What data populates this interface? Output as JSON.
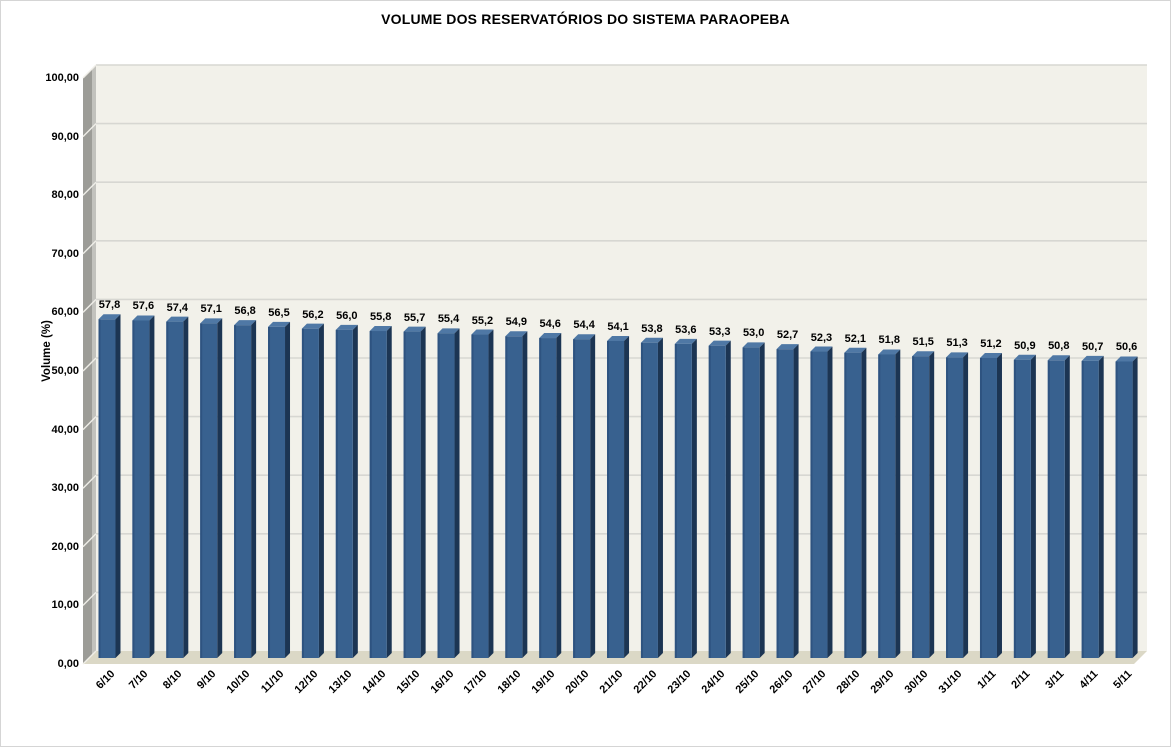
{
  "chart_data": {
    "type": "bar",
    "style": "excel-3d-column",
    "title": "VOLUME DOS RESERVATÓRIOS DO SISTEMA PARAOPEBA",
    "xlabel": "",
    "ylabel": "Volume (%)",
    "ylim": [
      0,
      100
    ],
    "ytick_step": 10,
    "ytick_labels": [
      "100,00",
      "90,00",
      "80,00",
      "70,00",
      "60,00",
      "50,00",
      "40,00",
      "30,00",
      "20,00",
      "10,00",
      "0,00"
    ],
    "grid": true,
    "legend": false,
    "categories": [
      "6/10",
      "7/10",
      "8/10",
      "9/10",
      "10/10",
      "11/10",
      "12/10",
      "13/10",
      "14/10",
      "15/10",
      "16/10",
      "17/10",
      "18/10",
      "19/10",
      "20/10",
      "21/10",
      "22/10",
      "23/10",
      "24/10",
      "25/10",
      "26/10",
      "27/10",
      "28/10",
      "29/10",
      "30/10",
      "31/10",
      "1/11",
      "2/11",
      "3/11",
      "4/11",
      "5/11"
    ],
    "values": [
      57.8,
      57.6,
      57.4,
      57.1,
      56.8,
      56.5,
      56.2,
      56.0,
      55.8,
      55.7,
      55.4,
      55.2,
      54.9,
      54.6,
      54.4,
      54.1,
      53.8,
      53.6,
      53.3,
      53.0,
      52.7,
      52.3,
      52.1,
      51.8,
      51.5,
      51.3,
      51.2,
      50.9,
      50.8,
      50.7,
      50.6
    ],
    "value_labels": [
      "57,8",
      "57,6",
      "57,4",
      "57,1",
      "56,8",
      "56,5",
      "56,2",
      "56,0",
      "55,8",
      "55,7",
      "55,4",
      "55,2",
      "54,9",
      "54,6",
      "54,4",
      "54,1",
      "53,8",
      "53,6",
      "53,3",
      "53,0",
      "52,7",
      "52,3",
      "52,1",
      "51,8",
      "51,5",
      "51,3",
      "51,2",
      "50,9",
      "50,8",
      "50,7",
      "50,6"
    ],
    "colors": {
      "bar_front": "#38618F",
      "bar_front_edge": "#2E5380",
      "bar_side": "#1C3553",
      "bar_top": "#4F78A5",
      "plot_bg": "#F2F1EA",
      "gridline": "#D7D7D2",
      "wall_dark": "#9C9C97",
      "wall_light": "#C2C2BD",
      "wall_notch": "#EFEEE8",
      "floor": "#DBD8C6",
      "text": "#000000"
    }
  }
}
